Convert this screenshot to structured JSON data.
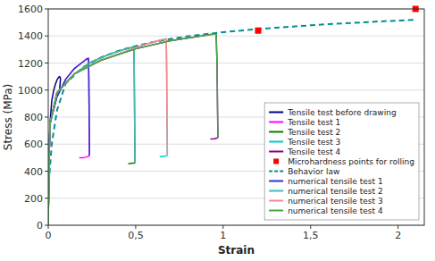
{
  "chart_data": {
    "type": "line",
    "xlabel": "Strain",
    "ylabel": "Stress (MPa)",
    "xlim": [
      0,
      2.15
    ],
    "ylim": [
      0,
      1600
    ],
    "xticks": [
      0,
      {
        "value": 0.5,
        "label": "0,5"
      },
      1,
      {
        "value": 1.5,
        "label": "1,5"
      },
      2
    ],
    "yticks": [
      0,
      200,
      400,
      600,
      800,
      1000,
      1200,
      1400,
      1600
    ],
    "grid": "y",
    "legend": "lower-right",
    "series": [
      {
        "name": "Tensile test before drawing",
        "color": "#00008B",
        "x": [
          0.0,
          0.002,
          0.005,
          0.01,
          0.02,
          0.03,
          0.04,
          0.05,
          0.06,
          0.065,
          0.068,
          0.07,
          0.068,
          0.065
        ],
        "values": [
          0,
          200,
          500,
          750,
          920,
          990,
          1040,
          1075,
          1095,
          1100,
          1095,
          1080,
          1050,
          1000
        ]
      },
      {
        "name": "Tensile test 1",
        "color": "#FF00FF",
        "x": [
          0.0,
          0.002,
          0.005,
          0.01,
          0.05,
          0.1,
          0.15,
          0.2,
          0.22,
          0.23,
          0.232,
          0.234,
          0.235,
          0.232,
          0.228,
          0.22,
          0.2,
          0.18
        ],
        "values": [
          0,
          200,
          500,
          750,
          950,
          1080,
          1160,
          1210,
          1230,
          1235,
          1100,
          800,
          520,
          510,
          510,
          505,
          500,
          500
        ]
      },
      {
        "name": "Tensile test 2",
        "color": "#008000",
        "x": [
          0.0,
          0.002,
          0.005,
          0.01,
          0.05,
          0.15,
          0.25,
          0.35,
          0.42,
          0.46,
          0.48,
          0.49,
          0.492,
          0.494,
          0.496,
          0.492,
          0.48,
          0.46
        ],
        "values": [
          0,
          200,
          500,
          750,
          980,
          1120,
          1210,
          1265,
          1295,
          1310,
          1315,
          1315,
          1100,
          750,
          465,
          460,
          460,
          455
        ]
      },
      {
        "name": "Tensile test 3",
        "color": "#00CCCC",
        "x": [
          0.0,
          0.002,
          0.005,
          0.01,
          0.05,
          0.15,
          0.3,
          0.45,
          0.56,
          0.63,
          0.66,
          0.675,
          0.677,
          0.679,
          0.681,
          0.677,
          0.665,
          0.64
        ],
        "values": [
          0,
          200,
          500,
          750,
          980,
          1120,
          1220,
          1290,
          1340,
          1365,
          1375,
          1378,
          1150,
          780,
          520,
          515,
          510,
          508
        ]
      },
      {
        "name": "Tensile test 4",
        "color": "#8B008B",
        "x": [
          0.0,
          0.002,
          0.005,
          0.01,
          0.05,
          0.15,
          0.3,
          0.5,
          0.7,
          0.85,
          0.92,
          0.96,
          0.965,
          0.968,
          0.97,
          0.965,
          0.95,
          0.93
        ],
        "values": [
          0,
          200,
          500,
          750,
          980,
          1120,
          1220,
          1305,
          1365,
          1395,
          1410,
          1415,
          1200,
          850,
          650,
          645,
          640,
          638
        ]
      },
      {
        "name": "Microhardness points for rolling",
        "color": "#FF0000",
        "type": "scatter",
        "marker": "square",
        "x": [
          1.2,
          2.1
        ],
        "values": [
          1440,
          1600
        ]
      },
      {
        "name": "Behavior law",
        "color": "#009090",
        "line_style": "dashed",
        "x": [
          0.0,
          0.02,
          0.05,
          0.1,
          0.2,
          0.3,
          0.4,
          0.5,
          0.6,
          0.7,
          0.8,
          0.9,
          1.0,
          1.1,
          1.2,
          1.3,
          1.4,
          1.5,
          1.6,
          1.7,
          1.8,
          1.9,
          2.0,
          2.1
        ],
        "values": [
          250,
          600,
          850,
          1050,
          1170,
          1240,
          1290,
          1325,
          1355,
          1378,
          1398,
          1414,
          1428,
          1440,
          1451,
          1461,
          1470,
          1479,
          1487,
          1494,
          1501,
          1508,
          1514,
          1520
        ]
      },
      {
        "name": "numerical tensile test 1",
        "color": "#3333CC",
        "x": [
          0.0,
          0.002,
          0.005,
          0.01,
          0.05,
          0.1,
          0.15,
          0.2,
          0.22,
          0.23,
          0.232,
          0.234,
          0.236
        ],
        "values": [
          0,
          200,
          500,
          750,
          950,
          1080,
          1160,
          1210,
          1230,
          1235,
          1100,
          800,
          520
        ]
      },
      {
        "name": "numerical tensile test 2",
        "color": "#44BBBB",
        "x": [
          0.0,
          0.002,
          0.005,
          0.01,
          0.05,
          0.15,
          0.25,
          0.35,
          0.42,
          0.46,
          0.48,
          0.49,
          0.492,
          0.494,
          0.496
        ],
        "values": [
          0,
          200,
          500,
          750,
          980,
          1120,
          1210,
          1265,
          1295,
          1310,
          1315,
          1315,
          1100,
          750,
          465
        ]
      },
      {
        "name": "numerical tensile test 3",
        "color": "#FF8888",
        "x": [
          0.0,
          0.002,
          0.005,
          0.01,
          0.05,
          0.15,
          0.3,
          0.45,
          0.56,
          0.63,
          0.66,
          0.675,
          0.677,
          0.679,
          0.681
        ],
        "values": [
          0,
          200,
          500,
          750,
          980,
          1120,
          1220,
          1290,
          1340,
          1365,
          1375,
          1378,
          1150,
          780,
          520
        ]
      },
      {
        "name": "numerical tensile test 4",
        "color": "#44AA44",
        "x": [
          0.0,
          0.002,
          0.005,
          0.01,
          0.05,
          0.15,
          0.3,
          0.5,
          0.7,
          0.85,
          0.92,
          0.96,
          0.965,
          0.968,
          0.97
        ],
        "values": [
          0,
          200,
          500,
          750,
          980,
          1120,
          1220,
          1305,
          1365,
          1395,
          1410,
          1415,
          1200,
          850,
          650
        ]
      }
    ]
  }
}
